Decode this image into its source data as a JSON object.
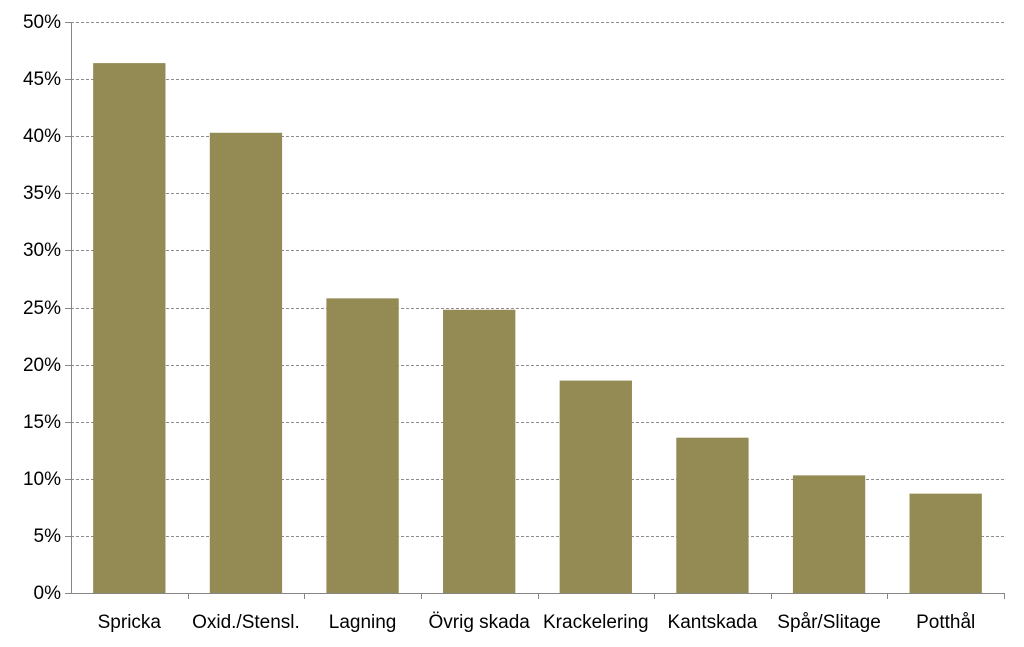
{
  "chart_data": {
    "type": "bar",
    "title": "",
    "xlabel": "",
    "ylabel": "",
    "categories": [
      "Spricka",
      "Oxid./Stensl.",
      "Lagning",
      "Övrig skada",
      "Krackelering",
      "Kantskada",
      "Spår/Slitage",
      "Potthål"
    ],
    "values": [
      46.4,
      40.3,
      25.8,
      24.8,
      18.6,
      13.6,
      10.3,
      8.7
    ],
    "ylim": [
      0,
      50
    ],
    "yticks": [
      0,
      5,
      10,
      15,
      20,
      25,
      30,
      35,
      40,
      45,
      50
    ],
    "ytick_labels": [
      "0%",
      "5%",
      "10%",
      "15%",
      "20%",
      "25%",
      "30%",
      "35%",
      "40%",
      "45%",
      "50%"
    ],
    "grid": true,
    "legend": "none",
    "colors": {
      "bar": "#948A54",
      "grid": "#8c8c8c",
      "axis": "#868686"
    }
  }
}
